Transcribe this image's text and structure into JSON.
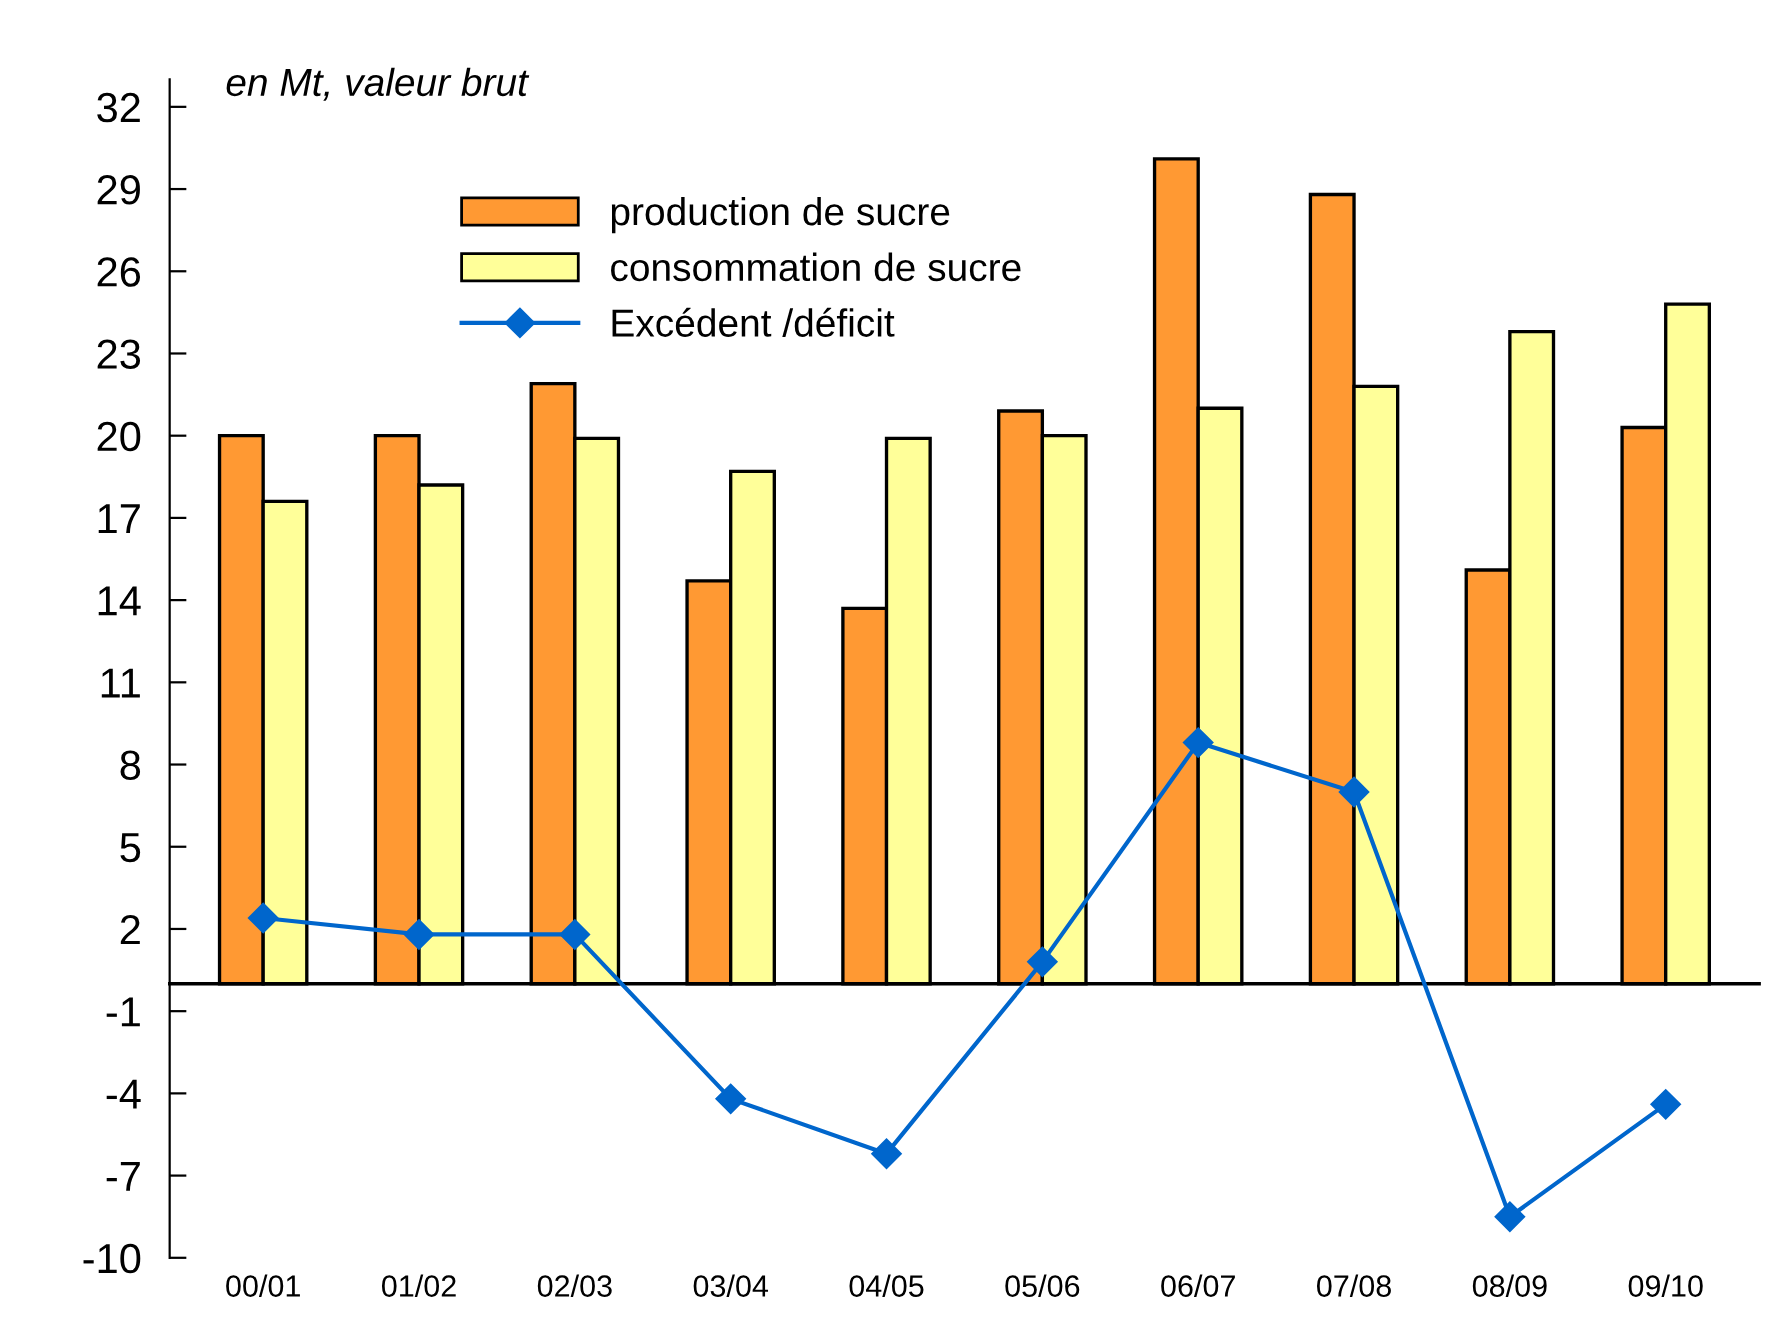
{
  "chart_data": {
    "type": "bar",
    "annotations": [
      "en Mt, valeur brut"
    ],
    "categories": [
      "00/01",
      "01/02",
      "02/03",
      "03/04",
      "04/05",
      "05/06",
      "06/07",
      "07/08",
      "08/09",
      "09/10"
    ],
    "series": [
      {
        "name": "production de sucre",
        "color": "#ff9933",
        "values": [
          20.0,
          20.0,
          21.9,
          14.7,
          13.7,
          20.9,
          30.1,
          28.8,
          15.1,
          20.3
        ]
      },
      {
        "name": "consommation de sucre",
        "color": "#ffff99",
        "values": [
          17.6,
          18.2,
          19.9,
          18.7,
          19.9,
          20.0,
          21.0,
          21.8,
          23.8,
          24.8
        ]
      },
      {
        "name": "Excédent /déficit",
        "type": "line",
        "color": "#0066cc",
        "marker": "diamond",
        "values": [
          2.4,
          1.8,
          1.8,
          -4.2,
          -6.2,
          0.8,
          8.8,
          7.0,
          -8.5,
          -4.4
        ]
      }
    ],
    "ylim": [
      -10,
      33
    ],
    "yticks": [
      -10,
      -7,
      -4,
      -1,
      2,
      5,
      8,
      11,
      14,
      17,
      20,
      23,
      26,
      29,
      32
    ],
    "grid": false,
    "legend": "top"
  }
}
